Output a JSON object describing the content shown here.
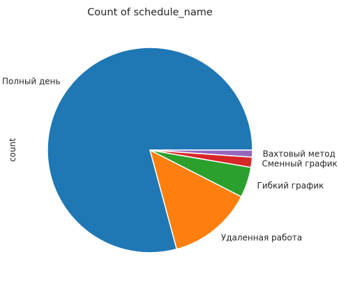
{
  "chart_data": {
    "type": "pie",
    "title": "Count of schedule_name",
    "ylabel": "count",
    "categories": [
      "Полный день",
      "Удаленная работа",
      "Гибкий график",
      "Сменный график",
      "Вахтовый метод"
    ],
    "values": [
      79.2,
      13.3,
      4.8,
      1.6,
      1.1
    ],
    "colors": [
      "#1f77b4",
      "#ff7f0e",
      "#2ca02c",
      "#d62728",
      "#9467bd"
    ],
    "start_angle_deg": 0,
    "direction": "counterclockwise",
    "legend": "none"
  }
}
